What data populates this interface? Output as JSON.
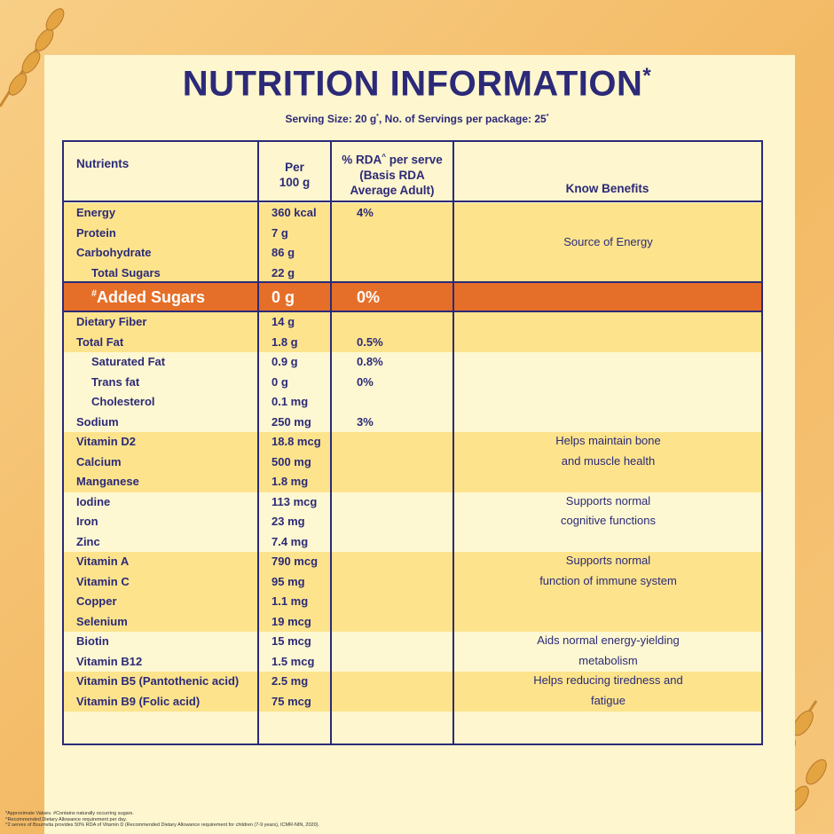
{
  "title": {
    "text": "NUTRITION INFORMATION",
    "mark": "*"
  },
  "serving": [
    {
      "text": "Serving Size: 20 g"
    },
    {
      "sup": "*"
    },
    {
      "text": ", No. of Servings per package: 25"
    },
    {
      "sup": "*"
    }
  ],
  "header": {
    "nutrients": "Nutrients",
    "per": [
      "Per",
      "100 g"
    ],
    "rda": [
      [
        {
          "text": "% RDA"
        },
        {
          "sup": "^"
        },
        {
          "text": " per serve"
        }
      ],
      [
        {
          "text": "(Basis RDA"
        }
      ],
      [
        {
          "text": "Average Adult)"
        }
      ]
    ],
    "benefits": "Know Benefits"
  },
  "groups": [
    {
      "shade": "yellow",
      "benefit": [
        "Source of Energy"
      ],
      "rows": [
        {
          "name": "Energy",
          "amount": "360 kcal",
          "rda": "4%"
        },
        {
          "name": "Protein",
          "amount": "7 g"
        },
        {
          "name": "Carbohydrate",
          "amount": "86 g"
        },
        {
          "name": "Total Sugars",
          "amount": "22 g",
          "indent": true
        }
      ]
    },
    {
      "shade": "orange",
      "rows": [
        {
          "name": "Added Sugars",
          "mark": "#",
          "amount": "0 g",
          "rda": "0%"
        }
      ]
    },
    {
      "shade": "yellow",
      "rows": [
        {
          "name": "Dietary Fiber",
          "amount": "14 g"
        },
        {
          "name": "Total Fat",
          "amount": "1.8 g",
          "rda": "0.5%"
        }
      ]
    },
    {
      "shade": "cream",
      "rows": [
        {
          "name": "Saturated Fat",
          "amount": "0.9 g",
          "rda": "0.8%",
          "indent": true
        },
        {
          "name": "Trans fat",
          "amount": "0 g",
          "rda": "0%",
          "indent": true
        },
        {
          "name": "Cholesterol",
          "amount": "0.1 mg",
          "indent": true
        },
        {
          "name": "Sodium",
          "amount": "250 mg",
          "rda": "3%"
        }
      ]
    },
    {
      "shade": "yellow",
      "benefit": [
        "Helps maintain bone",
        "and muscle health"
      ],
      "rows": [
        {
          "name": "Vitamin D2",
          "amount": "18.8 mcg"
        },
        {
          "name": "Calcium",
          "amount": "500 mg"
        },
        {
          "name": "Manganese",
          "amount": "1.8 mg"
        }
      ]
    },
    {
      "shade": "cream",
      "benefit": [
        "Supports normal",
        "cognitive functions"
      ],
      "rows": [
        {
          "name": "Iodine",
          "amount": "113 mcg"
        },
        {
          "name": "Iron",
          "amount": "23 mg"
        },
        {
          "name": "Zinc",
          "amount": "7.4 mg"
        }
      ]
    },
    {
      "shade": "yellow",
      "benefit": [
        "Supports normal",
        "function of immune system"
      ],
      "rows": [
        {
          "name": "Vitamin A",
          "amount": "790 mcg"
        },
        {
          "name": "Vitamin C",
          "amount": "95 mg"
        },
        {
          "name": "Copper",
          "amount": "1.1 mg"
        },
        {
          "name": "Selenium",
          "amount": "19 mcg"
        }
      ]
    },
    {
      "shade": "cream",
      "benefit": [
        "Aids normal energy-yielding",
        "metabolism"
      ],
      "rows": [
        {
          "name": "Biotin",
          "amount": "15 mcg"
        },
        {
          "name": "Vitamin B12",
          "amount": "1.5 mcg"
        }
      ]
    },
    {
      "shade": "yellow",
      "benefit": [
        "Helps reducing tiredness and",
        "fatigue"
      ],
      "rows": [
        {
          "name": "Vitamin B5 (Pantothenic acid)",
          "amount": "2.5 mg"
        },
        {
          "name": "Vitamin B9 (Folic acid)",
          "amount": "75 mcg"
        }
      ]
    }
  ],
  "footnotes": [
    "*Approximate Values. #Contains naturally occurring sugars.",
    "^Recommended Dietary Allowance requirement per day.",
    "^2 serves of Bournvita provides 50% RDA of Vitamin D (Recommended Dietary Allowance requirement for children (7-9 years), ICMR-NIN, 2020)."
  ]
}
